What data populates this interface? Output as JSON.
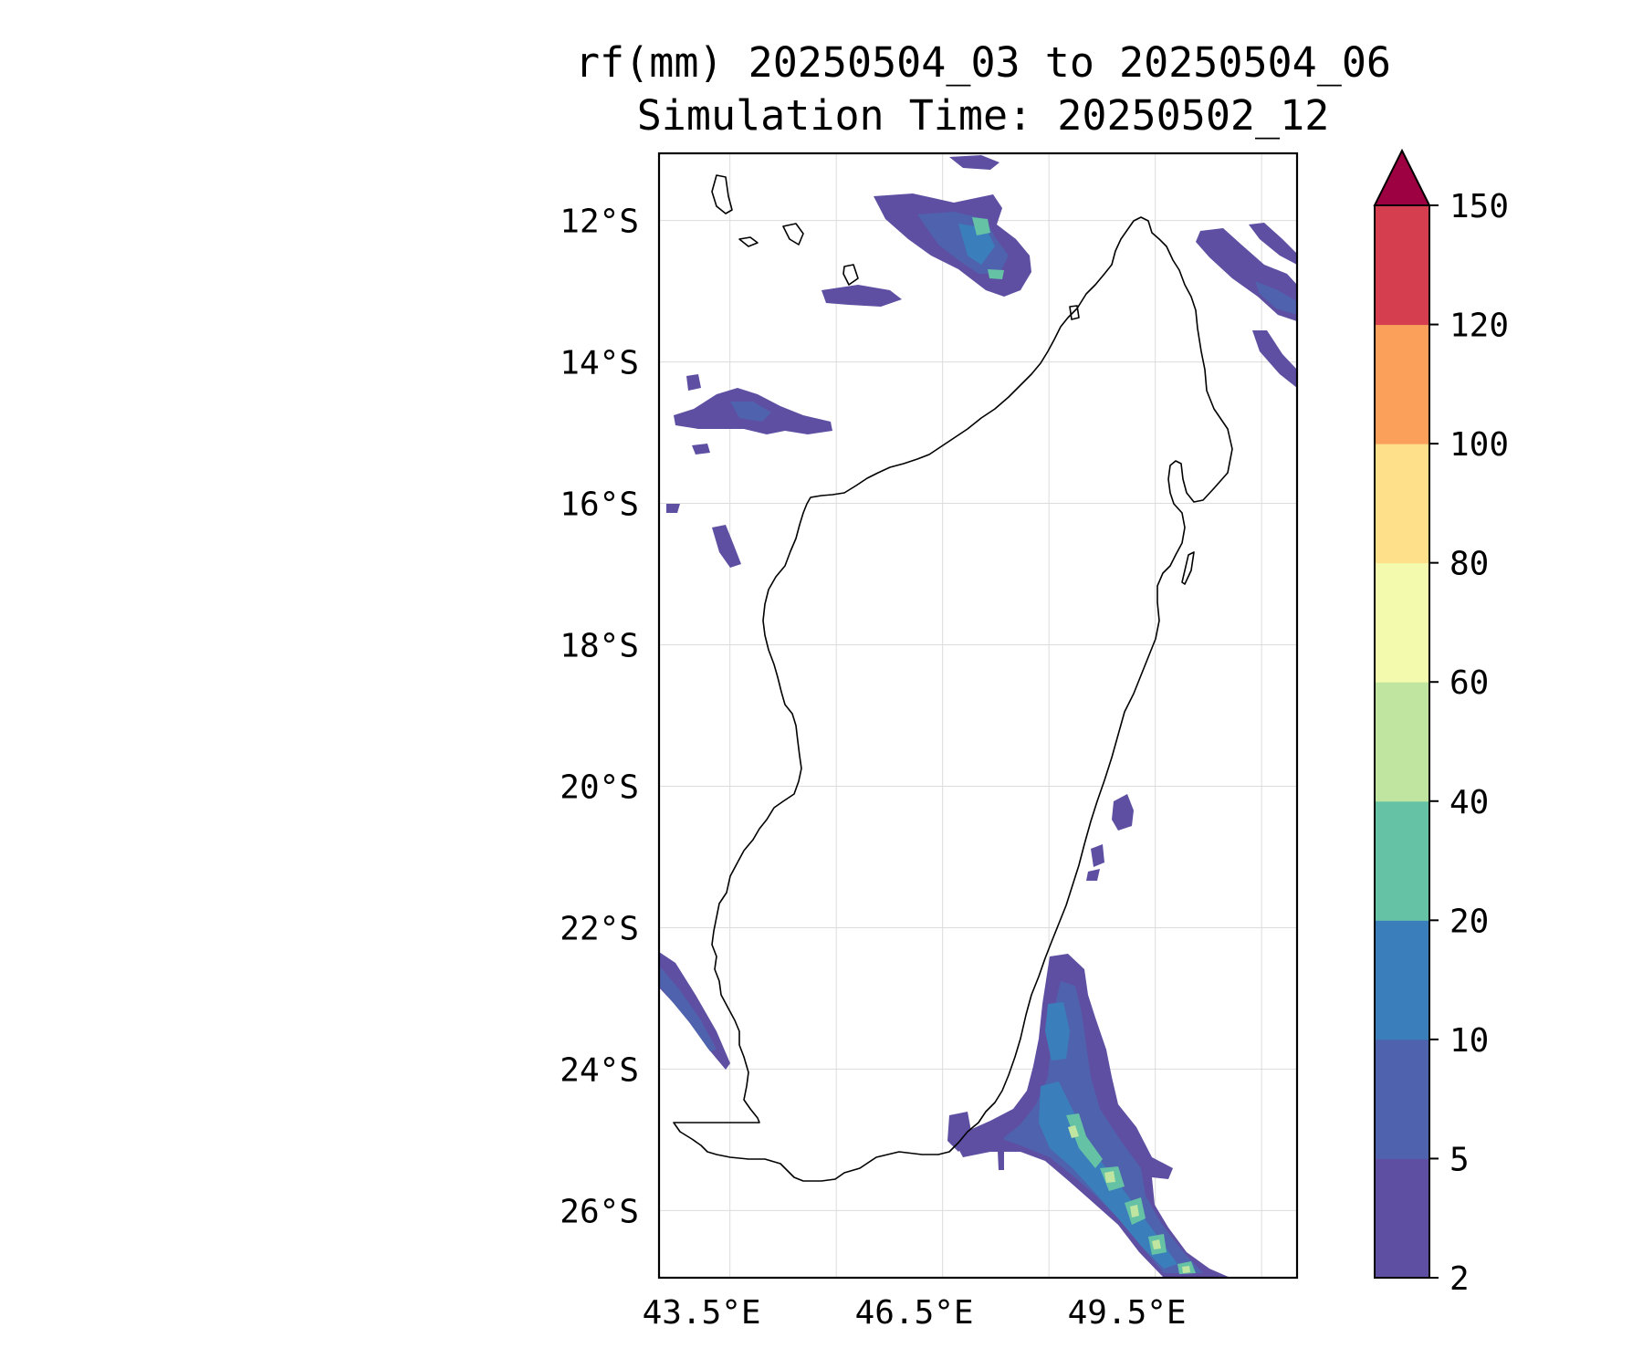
{
  "title": {
    "line1": "rf(mm) 20250504_03 to 20250504_06",
    "line2": "Simulation Time: 20250502_12"
  },
  "map": {
    "extent": {
      "lon_min": 42.9,
      "lon_max": 51.9,
      "lat_min": -26.95,
      "lat_max": -11.05
    },
    "lat_ticks": [
      {
        "value": -12,
        "label": "12°S"
      },
      {
        "value": -14,
        "label": "14°S"
      },
      {
        "value": -16,
        "label": "16°S"
      },
      {
        "value": -18,
        "label": "18°S"
      },
      {
        "value": -20,
        "label": "20°S"
      },
      {
        "value": -22,
        "label": "22°S"
      },
      {
        "value": -24,
        "label": "24°S"
      },
      {
        "value": -26,
        "label": "26°S"
      }
    ],
    "lon_ticks": [
      {
        "value": 43.5,
        "label": "43.5°E"
      },
      {
        "value": 46.5,
        "label": "46.5°E"
      },
      {
        "value": 49.5,
        "label": "49.5°E"
      }
    ],
    "lon_grid": [
      43.9,
      45.4,
      46.9,
      48.4,
      49.9,
      51.4
    ],
    "gridlines": true
  },
  "colorbar": {
    "levels": [
      "2",
      "5",
      "10",
      "20",
      "40",
      "60",
      "80",
      "100",
      "120",
      "150"
    ],
    "colors": [
      "#5e4fa2",
      "#4f62ad",
      "#3a7fbc",
      "#66c2a5",
      "#bfe5a0",
      "#f3faad",
      "#fee08b",
      "#fba05b",
      "#d53e4f"
    ],
    "extend_color": "#9e0142",
    "extend": "max"
  }
}
